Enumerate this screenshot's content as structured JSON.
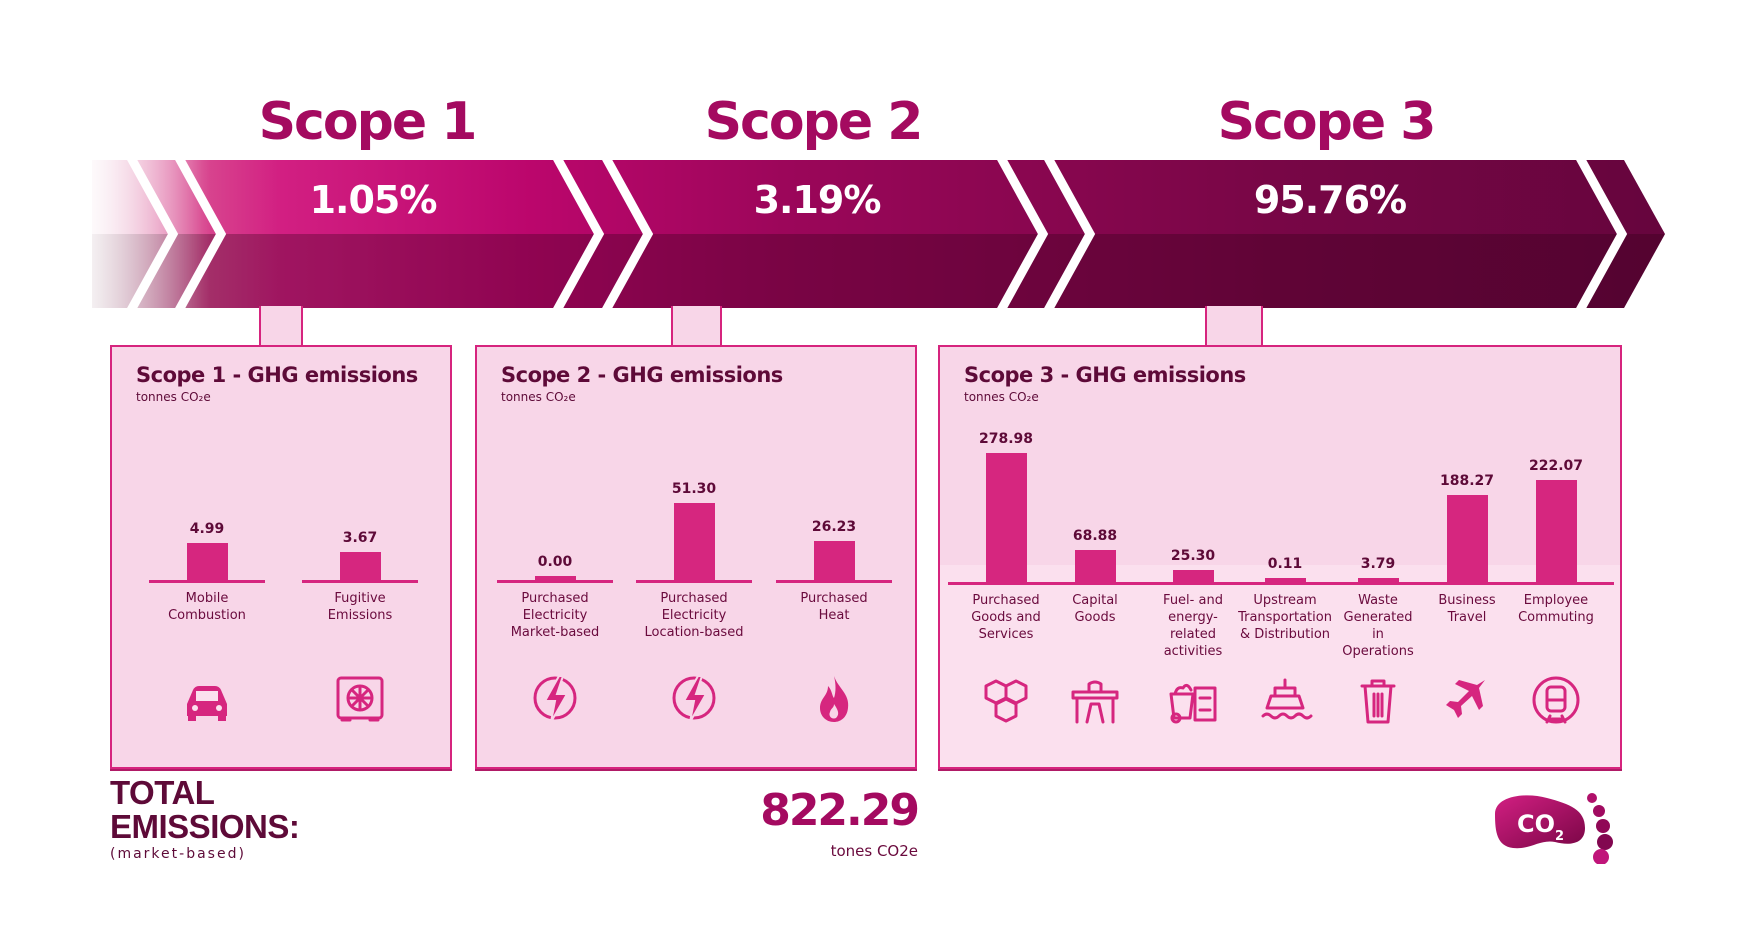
{
  "colors": {
    "accent": "#d6267f",
    "title": "#a40a60",
    "dark": "#5e0a38",
    "box_bg": "#f8d6e8"
  },
  "scopes": [
    {
      "title": "Scope 1",
      "percent": "1.05%"
    },
    {
      "title": "Scope 2",
      "percent": "3.19%"
    },
    {
      "title": "Scope 3",
      "percent": "95.76%"
    }
  ],
  "chart_data": [
    {
      "type": "bar",
      "title": "Scope 1 - GHG emissions",
      "ylabel": "tonnes CO₂e",
      "categories": [
        "Mobile\nCombustion",
        "Fugitive\nEmissions"
      ],
      "values": [
        4.99,
        3.67
      ],
      "value_labels": [
        "4.99",
        "3.67"
      ],
      "icons": [
        "car-icon",
        "air-conditioner-icon"
      ],
      "ylim": [
        0,
        20
      ]
    },
    {
      "type": "bar",
      "title": "Scope 2 - GHG emissions",
      "ylabel": "tonnes CO₂e",
      "categories": [
        "Purchased\nElectricity\nMarket-based",
        "Purchased\nElectricity\nLocation-based",
        "Purchased\nHeat"
      ],
      "values": [
        0.0,
        51.3,
        26.23
      ],
      "value_labels": [
        "0.00",
        "51.30",
        "26.23"
      ],
      "icons": [
        "lightning-icon",
        "lightning-icon",
        "flame-icon"
      ],
      "ylim": [
        0,
        100
      ]
    },
    {
      "type": "bar",
      "title": "Scope 3 - GHG emissions",
      "ylabel": "tonnes CO₂e",
      "categories": [
        "Purchased\nGoods and\nServices",
        "Capital\nGoods",
        "Fuel- and\nenergy-\nrelated\nactivities",
        "Upstream\nTransportation\n& Distribution",
        "Waste\nGenerated\nin\nOperations",
        "Business\nTravel",
        "Employee\nCommuting"
      ],
      "values": [
        278.98,
        68.88,
        25.3,
        0.11,
        3.79,
        188.27,
        222.07
      ],
      "value_labels": [
        "278.98",
        "68.88",
        "25.30",
        "0.11",
        "3.79",
        "188.27",
        "222.07"
      ],
      "icons": [
        "boxes-icon",
        "desk-icon",
        "waste-bin-icon",
        "ship-icon",
        "trash-can-icon",
        "airplane-icon",
        "train-icon"
      ],
      "ylim": [
        0,
        325
      ]
    }
  ],
  "total": {
    "label": "TOTAL\nEMISSIONS:",
    "note": "(market-based)",
    "value": "822.29",
    "unit": "tones CO2e"
  },
  "logo": {
    "text": "CO2",
    "icon": "co2-footprint-icon"
  }
}
